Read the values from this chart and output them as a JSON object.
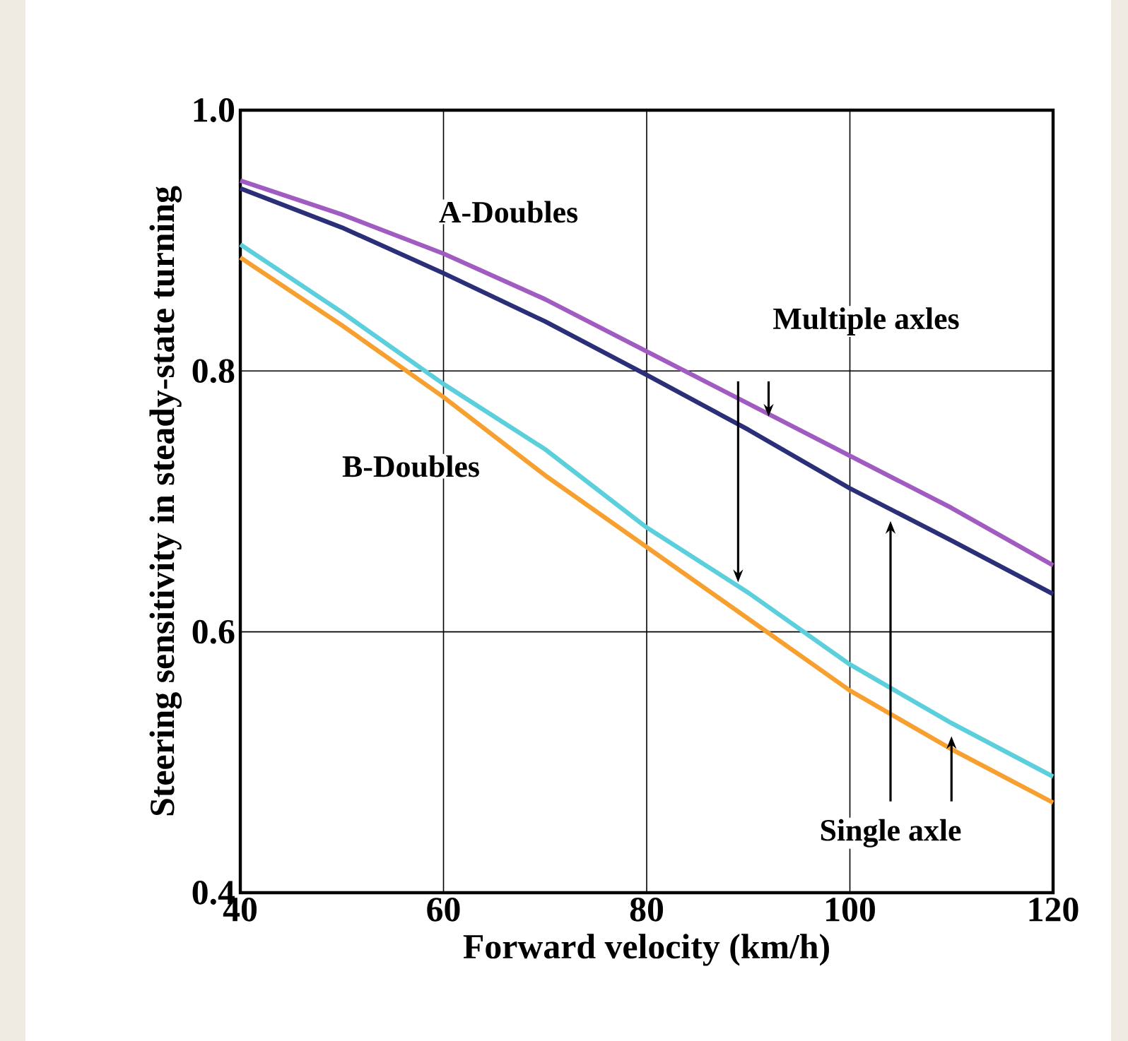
{
  "chart_data": {
    "type": "line",
    "xlabel": "Forward velocity (km/h)",
    "ylabel": "Steering sensitivity in steady-state turning",
    "x": [
      40,
      50,
      60,
      70,
      80,
      90,
      100,
      110,
      120
    ],
    "series": [
      {
        "color": "#a05cc0",
        "values": [
          0.946,
          0.92,
          0.89,
          0.855,
          0.815,
          0.775,
          0.735,
          0.695,
          0.651
        ]
      },
      {
        "color": "#2b2f78",
        "values": [
          0.94,
          0.91,
          0.875,
          0.838,
          0.797,
          0.755,
          0.71,
          0.67,
          0.629
        ]
      },
      {
        "color": "#5ccfdc",
        "values": [
          0.897,
          0.845,
          0.79,
          0.74,
          0.68,
          0.63,
          0.575,
          0.53,
          0.489
        ]
      },
      {
        "color": "#f7a030",
        "values": [
          0.887,
          0.835,
          0.78,
          0.72,
          0.665,
          0.61,
          0.555,
          0.51,
          0.469
        ]
      }
    ],
    "xlim": [
      40,
      120
    ],
    "ylim": [
      0.4,
      1.0
    ],
    "xticks": [
      40,
      60,
      80,
      100,
      120
    ],
    "yticks": [
      0.4,
      0.6,
      0.8,
      {
        "value": 1.0,
        "label": "1.0"
      }
    ],
    "grid": true,
    "annotations": [
      "A-Doubles",
      "B-Doubles",
      "Multiple axles",
      "Single axle"
    ]
  }
}
